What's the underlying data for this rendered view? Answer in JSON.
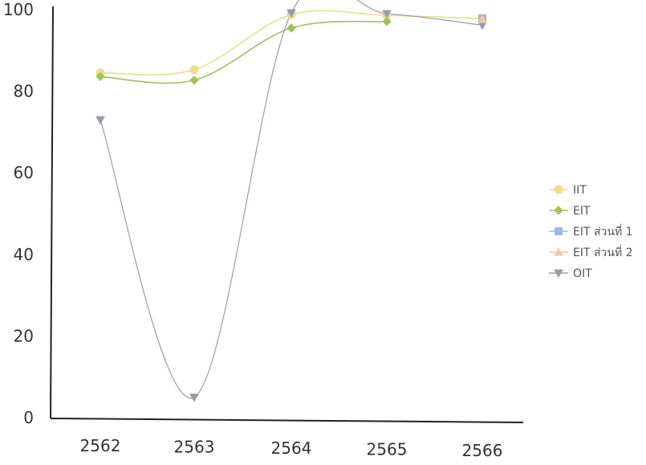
{
  "chart_data": {
    "type": "line",
    "title": "",
    "xlabel": "",
    "ylabel": "",
    "categories": [
      "2562",
      "2563",
      "2564",
      "2565",
      "2566"
    ],
    "ylim": [
      0,
      100
    ],
    "yticks": [
      "0",
      "20",
      "40",
      "60",
      "80",
      "100"
    ],
    "grid": false,
    "legend_position": "right",
    "series": [
      {
        "name": "IIT",
        "values": [
          84.5,
          85.3,
          98.8,
          98.6,
          97.8
        ],
        "color": "#f0dc8c",
        "marker": "circle"
      },
      {
        "name": "EIT",
        "values": [
          83.6,
          82.7,
          95.5,
          97.1,
          null
        ],
        "color": "#9dc35a",
        "marker": "diamond"
      },
      {
        "name": "EIT ส่วนที่ 1",
        "values": [
          null,
          null,
          null,
          null,
          97.9
        ],
        "color": "#9fb6e8",
        "marker": "square"
      },
      {
        "name": "EIT ส่วนที่ 2",
        "values": [
          null,
          null,
          null,
          null,
          97.6
        ],
        "color": "#f0c8a0",
        "marker": "triangle"
      },
      {
        "name": "OIT",
        "values": [
          73.0,
          5.0,
          99.2,
          99.0,
          96.2
        ],
        "color": "#9a9aae",
        "marker": "triangle-down"
      }
    ]
  }
}
